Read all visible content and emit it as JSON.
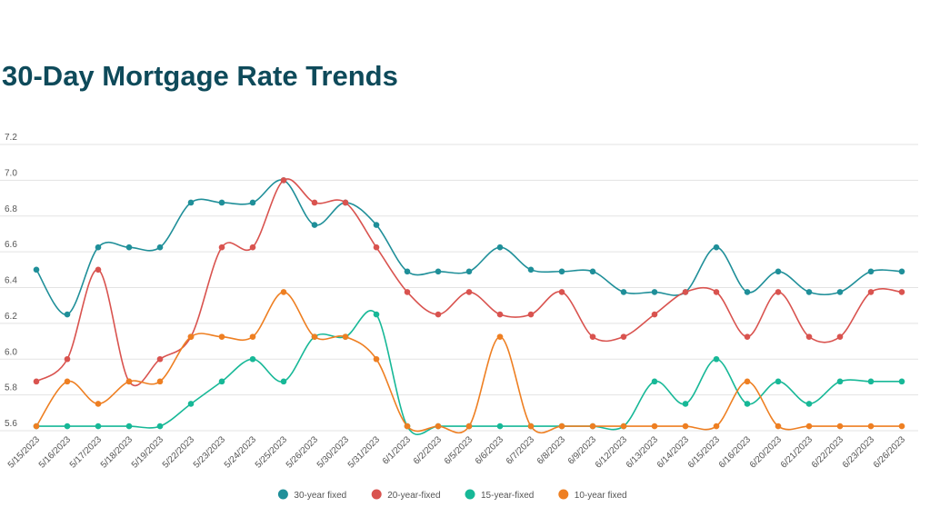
{
  "chart_data": {
    "type": "line",
    "title": "30-Day Mortgage Rate Trends",
    "categories": [
      "5/15/2023",
      "5/16/2023",
      "5/17/2023",
      "5/18/2023",
      "5/19/2023",
      "5/22/2023",
      "5/23/2023",
      "5/24/2023",
      "5/25/2023",
      "5/26/2023",
      "5/30/2023",
      "5/31/2023",
      "6/1/2023",
      "6/2/2023",
      "6/5/2023",
      "6/6/2023",
      "6/7/2023",
      "6/8/2023",
      "6/9/2023",
      "6/12/2023",
      "6/13/2023",
      "6/14/2023",
      "6/15/2023",
      "6/16/2023",
      "6/20/2023",
      "6/21/2023",
      "6/22/2023",
      "6/23/2023",
      "6/26/2023"
    ],
    "series": [
      {
        "name": "30-year fixed",
        "color": "#1f8f99",
        "values": [
          6.5,
          6.25,
          6.625,
          6.625,
          6.625,
          6.875,
          6.875,
          6.875,
          7.0,
          6.75,
          6.875,
          6.75,
          6.49,
          6.49,
          6.49,
          6.625,
          6.5,
          6.49,
          6.49,
          6.375,
          6.375,
          6.375,
          6.625,
          6.375,
          6.49,
          6.375,
          6.375,
          6.49,
          6.49
        ]
      },
      {
        "name": "20-year-fixed",
        "color": "#d9534f",
        "values": [
          5.875,
          6.0,
          6.5,
          5.875,
          6.0,
          6.125,
          6.625,
          6.625,
          7.0,
          6.875,
          6.875,
          6.625,
          6.375,
          6.25,
          6.375,
          6.25,
          6.25,
          6.375,
          6.125,
          6.125,
          6.25,
          6.375,
          6.375,
          6.125,
          6.375,
          6.125,
          6.125,
          6.375,
          6.375
        ]
      },
      {
        "name": "15-year-fixed",
        "color": "#17b897",
        "values": [
          5.625,
          5.625,
          5.625,
          5.625,
          5.625,
          5.75,
          5.875,
          6.0,
          5.875,
          6.125,
          6.125,
          6.25,
          5.625,
          5.625,
          5.625,
          5.625,
          5.625,
          5.625,
          5.625,
          5.625,
          5.875,
          5.75,
          6.0,
          5.75,
          5.875,
          5.75,
          5.875,
          5.875,
          5.875
        ]
      },
      {
        "name": "10-year fixed",
        "color": "#ee7f22",
        "values": [
          5.625,
          5.875,
          5.75,
          5.875,
          5.875,
          6.125,
          6.125,
          6.125,
          6.375,
          6.125,
          6.125,
          6.0,
          5.625,
          5.625,
          5.625,
          6.125,
          5.625,
          5.625,
          5.625,
          5.625,
          5.625,
          5.625,
          5.625,
          5.875,
          5.625,
          5.625,
          5.625,
          5.625,
          5.625
        ]
      }
    ],
    "ylim": [
      5.6,
      7.2
    ],
    "yticks": [
      5.6,
      5.8,
      {
        "value": 6.0,
        "label": "6.0"
      },
      6.2,
      6.4,
      6.6,
      6.8,
      {
        "value": 7.0,
        "label": "7.0"
      },
      7.2
    ],
    "grid": true,
    "legend": "bottom"
  }
}
